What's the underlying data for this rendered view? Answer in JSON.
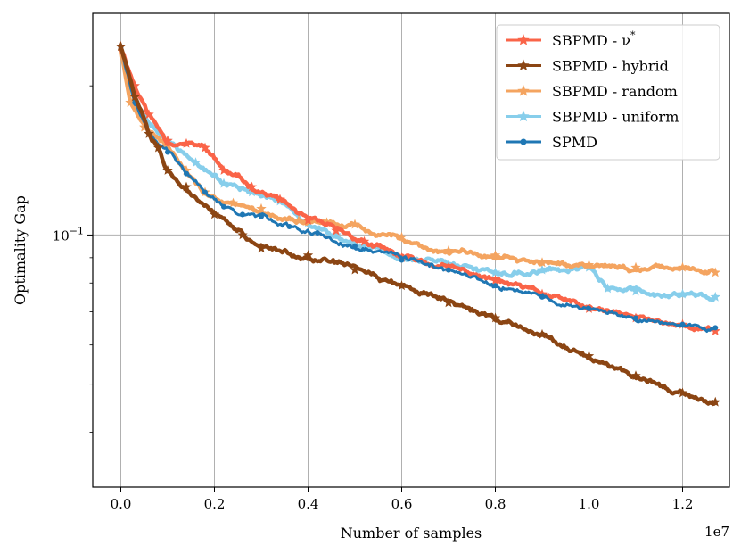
{
  "chart_data": {
    "type": "line",
    "title": "",
    "xlabel": "Number of samples",
    "ylabel": "Optimality Gap",
    "x_scale_label": "1e7",
    "yscale": "log",
    "xlim": [
      -0.06,
      1.3
    ],
    "ylim": [
      0.031,
      0.28
    ],
    "xticks": [
      0.0,
      0.2,
      0.4,
      0.6,
      0.8,
      1.0,
      1.2
    ],
    "xtick_labels": [
      "0.0",
      "0.2",
      "0.4",
      "0.6",
      "0.8",
      "1.0",
      "1.2"
    ],
    "yticks": [
      0.1
    ],
    "ytick_labels": [
      "10",
      "−1"
    ],
    "grid": true,
    "legend_position": "top-right",
    "series": [
      {
        "name": "SBPMD - ν*",
        "legend_main": "SBPMD - ν",
        "legend_sup": "*",
        "color": "#FA6448",
        "marker": "star",
        "x": [
          0.0,
          0.03,
          0.06,
          0.1,
          0.14,
          0.18,
          0.22,
          0.28,
          0.34,
          0.4,
          0.46,
          0.52,
          0.6,
          0.7,
          0.8,
          0.9,
          1.0,
          1.1,
          1.2,
          1.27
        ],
        "y": [
          0.24,
          0.2,
          0.175,
          0.155,
          0.153,
          0.15,
          0.135,
          0.125,
          0.118,
          0.107,
          0.102,
          0.097,
          0.09,
          0.086,
          0.081,
          0.076,
          0.071,
          0.068,
          0.066,
          0.064
        ]
      },
      {
        "name": "SBPMD - hybrid",
        "legend_main": "SBPMD - hybrid",
        "legend_sup": "",
        "color": "#8B4513",
        "marker": "star",
        "x": [
          0.0,
          0.03,
          0.06,
          0.08,
          0.1,
          0.14,
          0.2,
          0.26,
          0.3,
          0.4,
          0.5,
          0.6,
          0.7,
          0.8,
          0.9,
          1.0,
          1.1,
          1.2,
          1.27
        ],
        "y": [
          0.24,
          0.19,
          0.16,
          0.15,
          0.135,
          0.125,
          0.11,
          0.1,
          0.094,
          0.091,
          0.085,
          0.079,
          0.073,
          0.068,
          0.063,
          0.057,
          0.052,
          0.048,
          0.046
        ]
      },
      {
        "name": "SBPMD - random",
        "legend_main": "SBPMD - random",
        "legend_sup": "",
        "color": "#F4A460",
        "marker": "star",
        "x": [
          0.0,
          0.02,
          0.05,
          0.1,
          0.14,
          0.18,
          0.24,
          0.3,
          0.38,
          0.44,
          0.5,
          0.6,
          0.7,
          0.8,
          0.9,
          1.0,
          1.1,
          1.2,
          1.27
        ],
        "y": [
          0.24,
          0.185,
          0.165,
          0.152,
          0.135,
          0.122,
          0.116,
          0.113,
          0.107,
          0.106,
          0.105,
          0.099,
          0.093,
          0.091,
          0.088,
          0.087,
          0.086,
          0.086,
          0.084
        ]
      },
      {
        "name": "SBPMD - uniform",
        "legend_main": "SBPMD - uniform",
        "legend_sup": "",
        "color": "#87CEEB",
        "marker": "star",
        "x": [
          0.0,
          0.03,
          0.06,
          0.1,
          0.16,
          0.22,
          0.28,
          0.34,
          0.4,
          0.46,
          0.52,
          0.6,
          0.7,
          0.8,
          0.9,
          1.0,
          1.04,
          1.1,
          1.2,
          1.27
        ],
        "y": [
          0.24,
          0.185,
          0.167,
          0.155,
          0.14,
          0.127,
          0.122,
          0.117,
          0.106,
          0.1,
          0.095,
          0.09,
          0.087,
          0.084,
          0.085,
          0.086,
          0.078,
          0.077,
          0.076,
          0.075
        ]
      },
      {
        "name": "SPMD",
        "legend_main": "SPMD",
        "legend_sup": "",
        "color": "#1F77B4",
        "marker": "dot",
        "x": [
          0.0,
          0.03,
          0.06,
          0.1,
          0.14,
          0.18,
          0.22,
          0.26,
          0.3,
          0.36,
          0.42,
          0.5,
          0.6,
          0.7,
          0.8,
          0.9,
          1.0,
          1.1,
          1.2,
          1.27
        ],
        "y": [
          0.24,
          0.185,
          0.16,
          0.147,
          0.133,
          0.122,
          0.114,
          0.11,
          0.109,
          0.104,
          0.101,
          0.095,
          0.089,
          0.085,
          0.079,
          0.075,
          0.071,
          0.068,
          0.066,
          0.065
        ]
      }
    ]
  }
}
